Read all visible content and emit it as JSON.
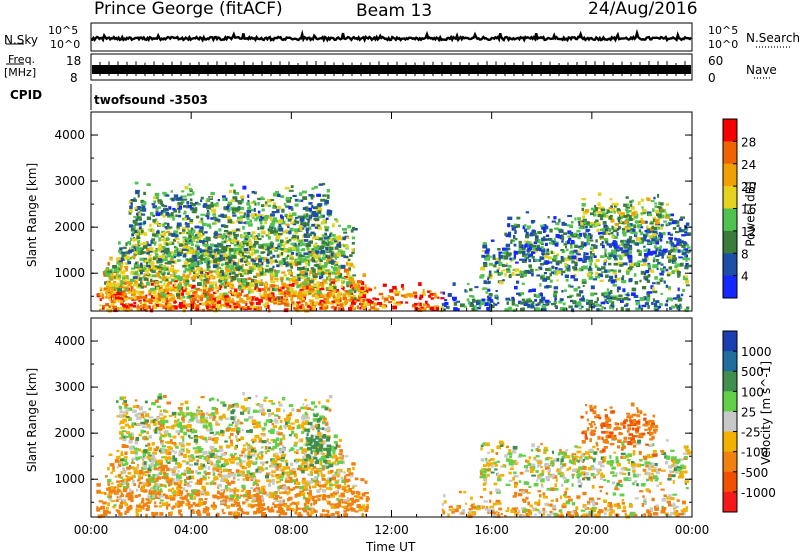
{
  "header": {
    "station": "Prince George (fitACF)",
    "beam": "Beam 13",
    "date": "24/Aug/2016"
  },
  "noise_panel": {
    "left_label": "N.Sky",
    "left_ticks": [
      "10^5",
      "10^0"
    ],
    "right_label": "N.Search",
    "right_ticks": [
      "10^5",
      "10^0"
    ]
  },
  "freq_panel": {
    "left_label_1": "Freq.",
    "left_label_2": "[MHz]",
    "left_ticks": [
      "18",
      "8"
    ],
    "right_label": "Nave",
    "right_ticks": [
      "60",
      "0"
    ]
  },
  "cpid": {
    "label": "CPID",
    "value": "twofsound -3503"
  },
  "colors": {
    "power": [
      "#1428ff",
      "#1d4fa8",
      "#3a7d3a",
      "#4fc24f",
      "#e6d21e",
      "#f0a000",
      "#f06400",
      "#f50000"
    ],
    "velocity": [
      "#1a3fb0",
      "#1f6e9e",
      "#3f8f4f",
      "#63d04a",
      "#c8c8c8",
      "#f2b000",
      "#f08010",
      "#f05000",
      "#f51a1a"
    ]
  },
  "chart_data": [
    {
      "type": "heatmap",
      "title": "",
      "xlabel": "Time UT",
      "ylabel": "Slant Range [km]",
      "xlim": [
        "00:00",
        "24:00"
      ],
      "x_ticks": [
        "00:00",
        "04:00",
        "08:00",
        "12:00",
        "16:00",
        "20:00",
        "00:00"
      ],
      "ylim": [
        180,
        4500
      ],
      "y_ticks": [
        "1000",
        "2000",
        "3000",
        "4000"
      ],
      "colorbar": {
        "label": "Power [dB]",
        "ticks": [
          "4",
          "8",
          "12",
          "16",
          "20",
          "24",
          "28"
        ],
        "range": [
          0,
          30
        ]
      },
      "features": [
        {
          "t_start": 0.2,
          "t_end": 14.0,
          "range_km": 300,
          "power_db": 24
        },
        {
          "t_start": 0.3,
          "t_end": 11.0,
          "range_km": 550,
          "power_db": 22
        },
        {
          "t_start": 0.5,
          "t_end": 10.5,
          "range_km": 1000,
          "power_db": 16
        },
        {
          "t_start": 1.0,
          "t_end": 10.0,
          "range_km": 1400,
          "power_db": 12
        },
        {
          "t_start": 1.5,
          "t_end": 10.5,
          "range_km": 1700,
          "power_db": 12
        },
        {
          "t_start": 1.5,
          "t_end": 9.5,
          "range_km": 2400,
          "power_db": 10
        },
        {
          "t_start": 14.0,
          "t_end": 23.8,
          "range_km": 240,
          "power_db": 8
        },
        {
          "t_start": 15.5,
          "t_end": 23.8,
          "range_km": 1200,
          "power_db": 10
        },
        {
          "t_start": 16.5,
          "t_end": 23.8,
          "range_km": 1800,
          "power_db": 8
        },
        {
          "t_start": 19.5,
          "t_end": 23.0,
          "range_km": 2200,
          "power_db": 14
        }
      ]
    },
    {
      "type": "heatmap",
      "title": "",
      "xlabel": "Time UT",
      "ylabel": "Slant Range [km]",
      "xlim": [
        "00:00",
        "24:00"
      ],
      "x_ticks": [
        "00:00",
        "04:00",
        "08:00",
        "12:00",
        "16:00",
        "20:00",
        "00:00"
      ],
      "ylim": [
        180,
        4500
      ],
      "y_ticks": [
        "1000",
        "2000",
        "3000",
        "4000"
      ],
      "colorbar": {
        "label": "Velocity [m s^-1]",
        "ticks": [
          "1000",
          "500",
          "100",
          "25",
          "-25",
          "-100",
          "-500",
          "-1000"
        ],
        "range": [
          -1000,
          1000
        ]
      },
      "features": [
        {
          "t_start": 0.2,
          "t_end": 11.0,
          "range_km": 450,
          "velocity": -200
        },
        {
          "t_start": 0.5,
          "t_end": 10.5,
          "range_km": 1000,
          "velocity": -60
        },
        {
          "t_start": 1.0,
          "t_end": 10.0,
          "range_km": 1500,
          "velocity": 0
        },
        {
          "t_start": 1.0,
          "t_end": 9.5,
          "range_km": 2300,
          "velocity": 0
        },
        {
          "t_start": 8.5,
          "t_end": 9.5,
          "range_km": 1800,
          "velocity": 300
        },
        {
          "t_start": 14.0,
          "t_end": 23.8,
          "range_km": 250,
          "velocity": -80
        },
        {
          "t_start": 15.5,
          "t_end": 23.8,
          "range_km": 1300,
          "velocity": 0
        },
        {
          "t_start": 19.5,
          "t_end": 22.5,
          "range_km": 2150,
          "velocity": -450
        }
      ]
    }
  ]
}
